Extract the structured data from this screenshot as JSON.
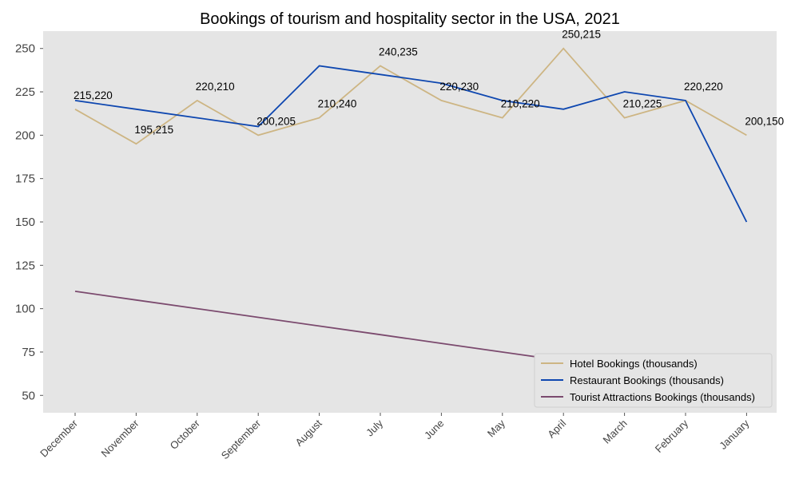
{
  "chart_data": {
    "type": "line",
    "title": "Bookings of tourism and hospitality sector in the USA, 2021",
    "xlabel": "",
    "ylabel": "",
    "categories": [
      "December",
      "November",
      "October",
      "September",
      "August",
      "July",
      "June",
      "May",
      "April",
      "March",
      "February",
      "January"
    ],
    "ylim": [
      40,
      260
    ],
    "yticks": [
      50,
      75,
      100,
      125,
      150,
      175,
      200,
      225,
      250
    ],
    "grid": false,
    "legend_position": "bottom-right",
    "background": "#e5e5e5",
    "series": [
      {
        "name": "Hotel Bookings (thousands)",
        "color": "#cdb583",
        "values": [
          215,
          195,
          220,
          200,
          210,
          240,
          220,
          210,
          250,
          210,
          220,
          200
        ]
      },
      {
        "name": "Restaurant Bookings (thousands)",
        "color": "#0e47b0",
        "values": [
          220,
          215,
          210,
          205,
          240,
          235,
          230,
          220,
          215,
          225,
          220,
          150
        ]
      },
      {
        "name": "Tourist Attractions Bookings (thousands)",
        "color": "#7b4a6e",
        "values": [
          110,
          105,
          100,
          95,
          90,
          85,
          80,
          75,
          70,
          65,
          55,
          50
        ]
      }
    ],
    "annotations": [
      "215,220",
      "195,215",
      "220,210",
      "200,205",
      "210,240",
      "240,235",
      "220,230",
      "210,220",
      "250,215",
      "210,225",
      "220,220",
      "200,150"
    ]
  }
}
